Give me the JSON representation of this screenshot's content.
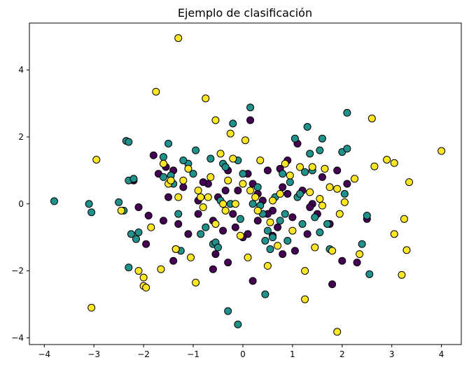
{
  "chart_data": {
    "type": "scatter",
    "title": "Ejemplo de clasificación",
    "xlabel": "",
    "ylabel": "",
    "xlim": [
      -4.3,
      4.4
    ],
    "ylim": [
      -4.2,
      5.4
    ],
    "xticks": [
      -4,
      -3,
      -2,
      -1,
      0,
      1,
      2,
      3,
      4
    ],
    "yticks": [
      -4,
      -2,
      0,
      2,
      4
    ],
    "grid": false,
    "legend": "none",
    "series": [
      {
        "color": "#440154",
        "points": [
          [
            -1.8,
            1.45
          ],
          [
            -1.7,
            0.9
          ],
          [
            -1.5,
            0.2
          ],
          [
            -1.9,
            -0.35
          ],
          [
            -2.1,
            -0.1
          ],
          [
            -1.6,
            -0.5
          ],
          [
            -1.3,
            -0.6
          ],
          [
            -1.1,
            -0.9
          ],
          [
            -1.4,
            1.0
          ],
          [
            -1.2,
            0.5
          ],
          [
            -0.9,
            -0.3
          ],
          [
            -0.7,
            0.6
          ],
          [
            -0.6,
            -0.5
          ],
          [
            -0.5,
            0.2
          ],
          [
            -0.4,
            -0.8
          ],
          [
            -0.3,
            1.0
          ],
          [
            -0.2,
            -0.3
          ],
          [
            -0.1,
            0.4
          ],
          [
            0.1,
            -0.9
          ],
          [
            0.2,
            0.6
          ],
          [
            0.3,
            -0.5
          ],
          [
            0.4,
            0.1
          ],
          [
            0.5,
            1.0
          ],
          [
            0.6,
            -0.2
          ],
          [
            0.7,
            -0.7
          ],
          [
            0.8,
            0.5
          ],
          [
            0.9,
            1.3
          ],
          [
            1.0,
            -0.4
          ],
          [
            1.1,
            1.8
          ],
          [
            1.2,
            0.4
          ],
          [
            1.3,
            -0.9
          ],
          [
            1.5,
            -0.3
          ],
          [
            1.6,
            0.8
          ],
          [
            1.9,
            1.0
          ],
          [
            2.0,
            -1.7
          ],
          [
            2.1,
            0.6
          ],
          [
            2.3,
            -1.75
          ],
          [
            0.2,
            -2.3
          ],
          [
            -0.6,
            -1.95
          ],
          [
            -0.3,
            -1.75
          ],
          [
            -1.4,
            -1.7
          ],
          [
            0.8,
            -1.5
          ],
          [
            1.8,
            -2.4
          ],
          [
            -0.8,
            0.65
          ],
          [
            0.6,
            -0.95
          ],
          [
            0.15,
            2.5
          ],
          [
            0.3,
            0.3
          ],
          [
            1.4,
            0.0
          ],
          [
            -1.95,
            -1.2
          ],
          [
            -2.2,
            0.7
          ],
          [
            -0.9,
            0.1
          ],
          [
            0.0,
            -1.0
          ],
          [
            0.9,
            0.3
          ],
          [
            0.5,
            -0.3
          ],
          [
            -0.35,
            0.4
          ],
          [
            1.35,
            -0.1
          ],
          [
            -1.55,
            1.1
          ],
          [
            2.5,
            -0.45
          ],
          [
            0.1,
            0.9
          ],
          [
            -0.55,
            -1.5
          ],
          [
            1.05,
            -1.4
          ],
          [
            -0.15,
            -0.7
          ],
          [
            0.75,
            1.05
          ],
          [
            1.75,
            -0.6
          ]
        ]
      },
      {
        "color": "#21918c",
        "points": [
          [
            -3.8,
            0.08
          ],
          [
            -3.1,
            0.0
          ],
          [
            -3.05,
            -0.25
          ],
          [
            -2.5,
            0.05
          ],
          [
            -2.4,
            -0.2
          ],
          [
            -2.35,
            1.88
          ],
          [
            -2.3,
            1.85
          ],
          [
            -2.3,
            0.7
          ],
          [
            -2.2,
            0.75
          ],
          [
            -2.25,
            -0.9
          ],
          [
            -2.1,
            -0.85
          ],
          [
            -2.3,
            -1.9
          ],
          [
            -1.6,
            1.4
          ],
          [
            -1.5,
            1.8
          ],
          [
            -1.6,
            0.8
          ],
          [
            -1.4,
            0.6
          ],
          [
            -1.3,
            -0.3
          ],
          [
            -1.25,
            -1.4
          ],
          [
            -1.1,
            1.2
          ],
          [
            -1.0,
            0.9
          ],
          [
            -0.95,
            1.6
          ],
          [
            -0.75,
            -0.7
          ],
          [
            -0.6,
            -1.2
          ],
          [
            -0.55,
            -1.15
          ],
          [
            -0.5,
            -1.3
          ],
          [
            -0.4,
            1.2
          ],
          [
            -0.35,
            1.1
          ],
          [
            -0.25,
            0.0
          ],
          [
            -0.2,
            2.4
          ],
          [
            -0.1,
            1.3
          ],
          [
            0.0,
            0.9
          ],
          [
            0.15,
            2.88
          ],
          [
            0.2,
            0.0
          ],
          [
            0.4,
            -0.3
          ],
          [
            0.45,
            -1.1
          ],
          [
            0.5,
            -0.8
          ],
          [
            0.55,
            -1.35
          ],
          [
            0.6,
            -1.0
          ],
          [
            0.75,
            -0.5
          ],
          [
            0.8,
            0.9
          ],
          [
            0.85,
            -0.3
          ],
          [
            0.9,
            -1.1
          ],
          [
            1.05,
            1.95
          ],
          [
            1.1,
            0.2
          ],
          [
            1.15,
            0.3
          ],
          [
            1.2,
            -0.6
          ],
          [
            1.3,
            2.3
          ],
          [
            1.35,
            1.5
          ],
          [
            1.4,
            1.0
          ],
          [
            1.45,
            -0.4
          ],
          [
            1.55,
            1.6
          ],
          [
            1.6,
            1.95
          ],
          [
            1.7,
            -0.6
          ],
          [
            1.75,
            -1.35
          ],
          [
            2.0,
            1.55
          ],
          [
            2.05,
            0.3
          ],
          [
            2.1,
            1.65
          ],
          [
            2.1,
            2.72
          ],
          [
            2.4,
            -1.2
          ],
          [
            2.55,
            -2.1
          ],
          [
            0.45,
            -2.7
          ],
          [
            -0.3,
            -3.2
          ],
          [
            -0.1,
            -3.6
          ],
          [
            -1.35,
            -1.35
          ],
          [
            -2.15,
            -1.05
          ],
          [
            -0.85,
            -0.9
          ],
          [
            0.3,
            0.5
          ],
          [
            1.25,
            0.95
          ],
          [
            -0.65,
            1.35
          ],
          [
            0.95,
            0.65
          ],
          [
            -1.2,
            1.3
          ],
          [
            0.65,
            0.2
          ],
          [
            1.55,
            -0.85
          ],
          [
            -0.05,
            -0.45
          ],
          [
            2.5,
            -0.35
          ],
          [
            -1.45,
            0.85
          ],
          [
            0.35,
            -0.05
          ],
          [
            -0.45,
            0.1
          ]
        ]
      },
      {
        "color": "#fde725",
        "points": [
          [
            -1.3,
            4.95
          ],
          [
            -1.75,
            3.35
          ],
          [
            -0.75,
            3.15
          ],
          [
            -0.55,
            2.5
          ],
          [
            -0.25,
            2.1
          ],
          [
            -3.05,
            -3.1
          ],
          [
            -2.95,
            1.32
          ],
          [
            -2.45,
            -0.2
          ],
          [
            -2.0,
            -2.45
          ],
          [
            -1.95,
            -2.5
          ],
          [
            -2.1,
            -2.0
          ],
          [
            -2.0,
            -2.2
          ],
          [
            -1.85,
            -0.7
          ],
          [
            -1.65,
            -1.95
          ],
          [
            -1.5,
            0.6
          ],
          [
            -1.45,
            0.7
          ],
          [
            -1.35,
            -1.35
          ],
          [
            -1.1,
            1.05
          ],
          [
            -1.05,
            -1.6
          ],
          [
            -0.95,
            -2.35
          ],
          [
            -0.9,
            0.4
          ],
          [
            -0.85,
            0.2
          ],
          [
            -0.7,
            0.2
          ],
          [
            -0.65,
            0.8
          ],
          [
            -0.55,
            -0.6
          ],
          [
            -0.45,
            1.5
          ],
          [
            -0.4,
            0.0
          ],
          [
            -0.3,
            0.7
          ],
          [
            -0.15,
            0.0
          ],
          [
            0.0,
            0.6
          ],
          [
            0.05,
            1.9
          ],
          [
            0.1,
            -1.6
          ],
          [
            0.25,
            0.2
          ],
          [
            0.3,
            -0.2
          ],
          [
            0.35,
            1.3
          ],
          [
            0.5,
            -1.85
          ],
          [
            0.6,
            0.1
          ],
          [
            0.75,
            0.3
          ],
          [
            0.85,
            1.2
          ],
          [
            1.0,
            -0.8
          ],
          [
            1.15,
            1.1
          ],
          [
            1.25,
            -2.0
          ],
          [
            1.4,
            1.1
          ],
          [
            1.55,
            0.15
          ],
          [
            1.6,
            -0.05
          ],
          [
            1.65,
            1.05
          ],
          [
            1.75,
            0.5
          ],
          [
            1.8,
            -1.4
          ],
          [
            1.9,
            0.45
          ],
          [
            1.95,
            -0.3
          ],
          [
            2.25,
            0.75
          ],
          [
            2.35,
            -1.5
          ],
          [
            2.6,
            2.55
          ],
          [
            2.65,
            1.12
          ],
          [
            2.9,
            1.32
          ],
          [
            3.05,
            1.22
          ],
          [
            3.05,
            -0.9
          ],
          [
            3.2,
            -2.12
          ],
          [
            3.25,
            -0.45
          ],
          [
            3.3,
            -1.38
          ],
          [
            3.35,
            0.65
          ],
          [
            4.0,
            1.58
          ],
          [
            1.9,
            -3.82
          ],
          [
            1.25,
            -2.85
          ],
          [
            -0.35,
            -0.2
          ],
          [
            0.15,
            0.4
          ],
          [
            -1.2,
            0.7
          ],
          [
            0.95,
            0.85
          ],
          [
            -0.8,
            -0.1
          ],
          [
            1.35,
            0.35
          ],
          [
            -1.6,
            1.2
          ],
          [
            0.55,
            -0.55
          ],
          [
            -0.05,
            -0.95
          ],
          [
            2.05,
            0.05
          ],
          [
            -1.3,
            0.2
          ],
          [
            0.7,
            -1.25
          ],
          [
            -0.2,
            1.35
          ],
          [
            1.45,
            -1.3
          ]
        ]
      }
    ]
  }
}
